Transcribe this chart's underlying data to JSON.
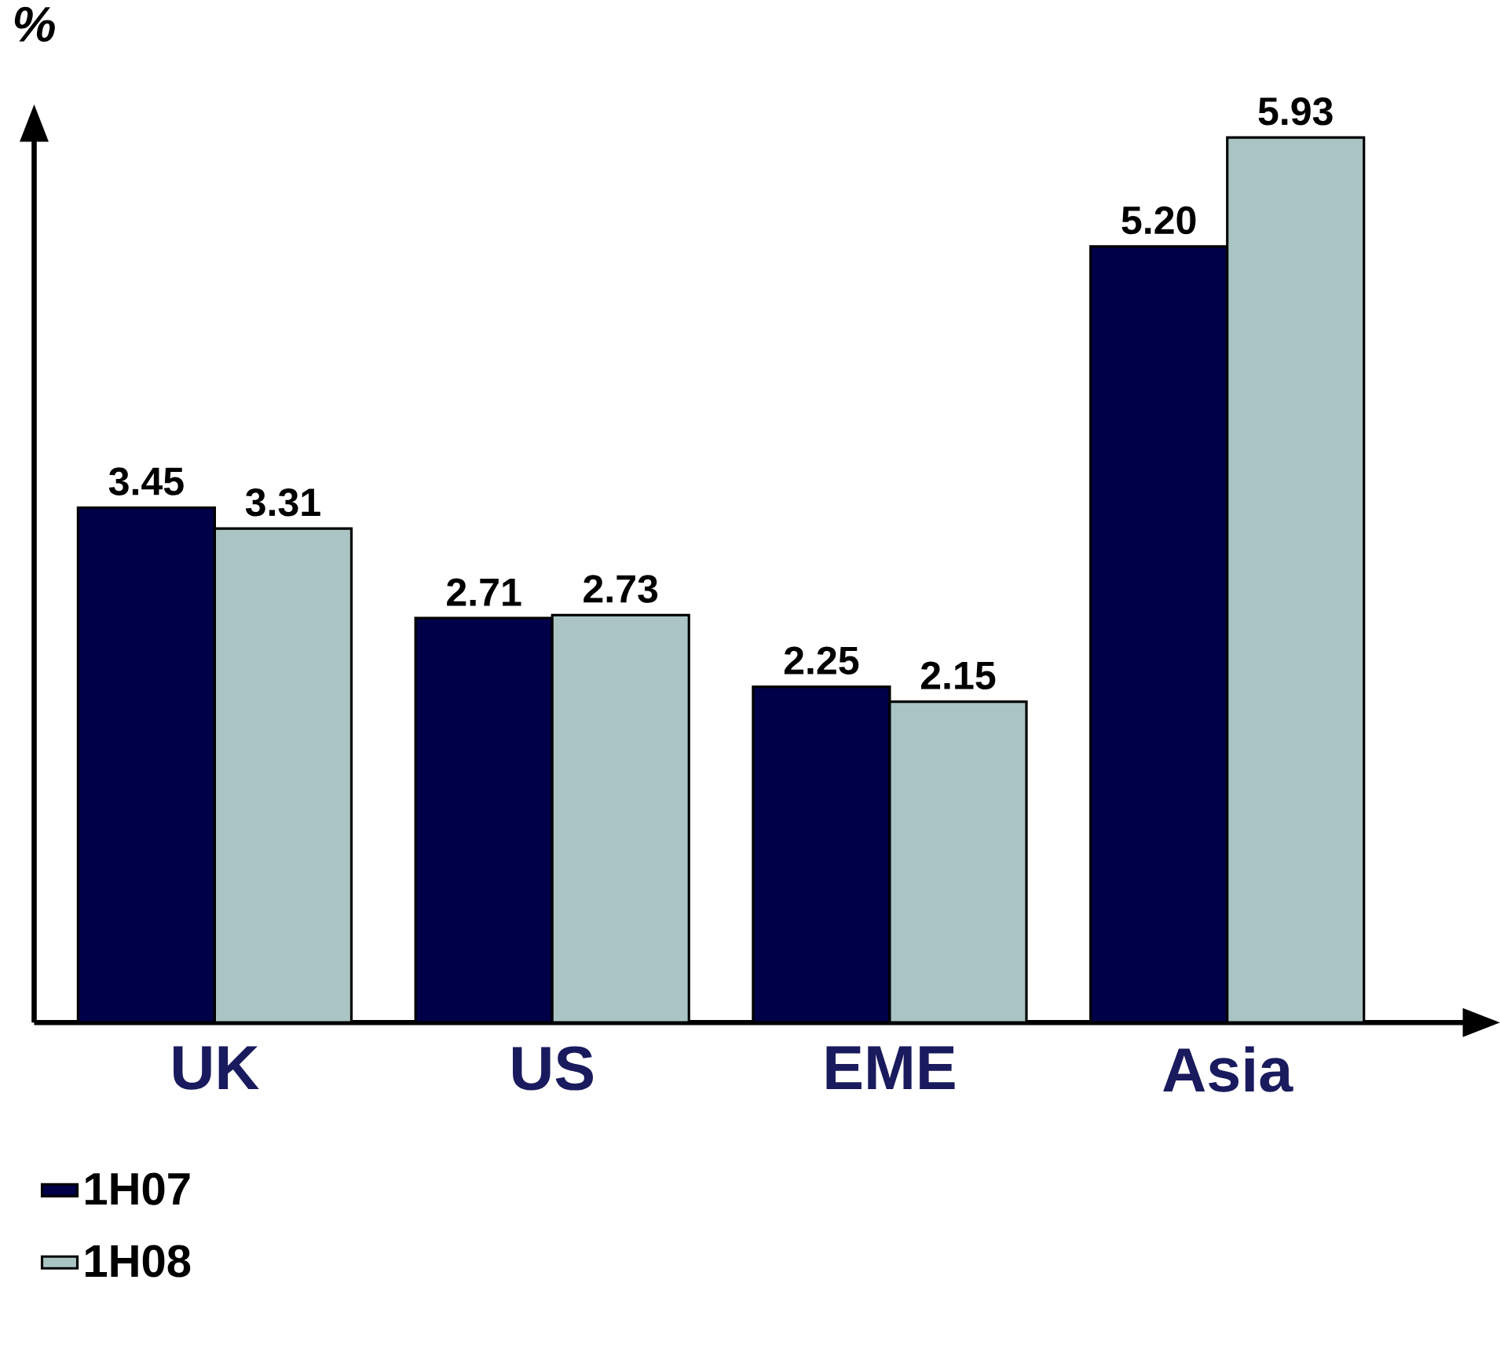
{
  "chart_data": {
    "type": "bar",
    "ylabel": "%",
    "categories": [
      "UK",
      "US",
      "EME",
      "Asia"
    ],
    "series": [
      {
        "name": "1H07",
        "color": "#000048",
        "values": [
          3.45,
          2.71,
          2.25,
          5.2
        ],
        "value_labels": [
          "3.45",
          "2.71",
          "2.25",
          "5.20"
        ]
      },
      {
        "name": "1H08",
        "color": "#aac4c4",
        "values": [
          3.31,
          2.73,
          2.15,
          5.93
        ],
        "value_labels": [
          "3.31",
          "2.73",
          "2.15",
          "5.93"
        ]
      }
    ],
    "legend": "bottom left"
  }
}
